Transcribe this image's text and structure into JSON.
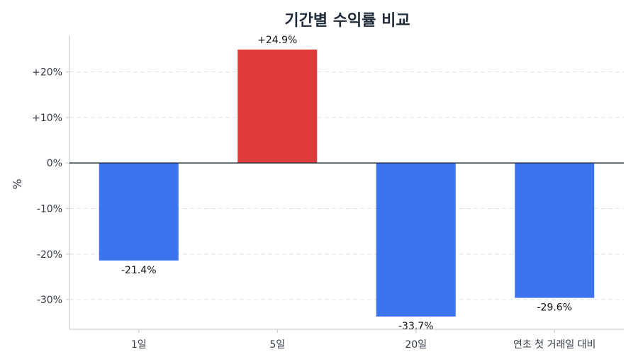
{
  "chart_data": {
    "type": "bar",
    "title": "기간별 수익률 비교",
    "xlabel": "",
    "ylabel": "%",
    "categories": [
      "1일",
      "5일",
      "20일",
      "연초 첫 거래일 대비"
    ],
    "values": [
      -21.4,
      24.9,
      -33.7,
      -29.6
    ],
    "data_labels": [
      "-21.4%",
      "+24.9%",
      "-33.7%",
      "-29.6%"
    ],
    "yticks": [
      20,
      10,
      0,
      -10,
      -20,
      -30
    ],
    "ytick_labels": [
      "+20%",
      "+10%",
      "0%",
      "-10%",
      "-20%",
      "-30%"
    ],
    "ylim": [
      -36.5,
      28
    ],
    "grid": true,
    "colors": {
      "positive": "#e03b3b",
      "negative": "#3c73ef",
      "zero_line": "#2b3645"
    }
  }
}
